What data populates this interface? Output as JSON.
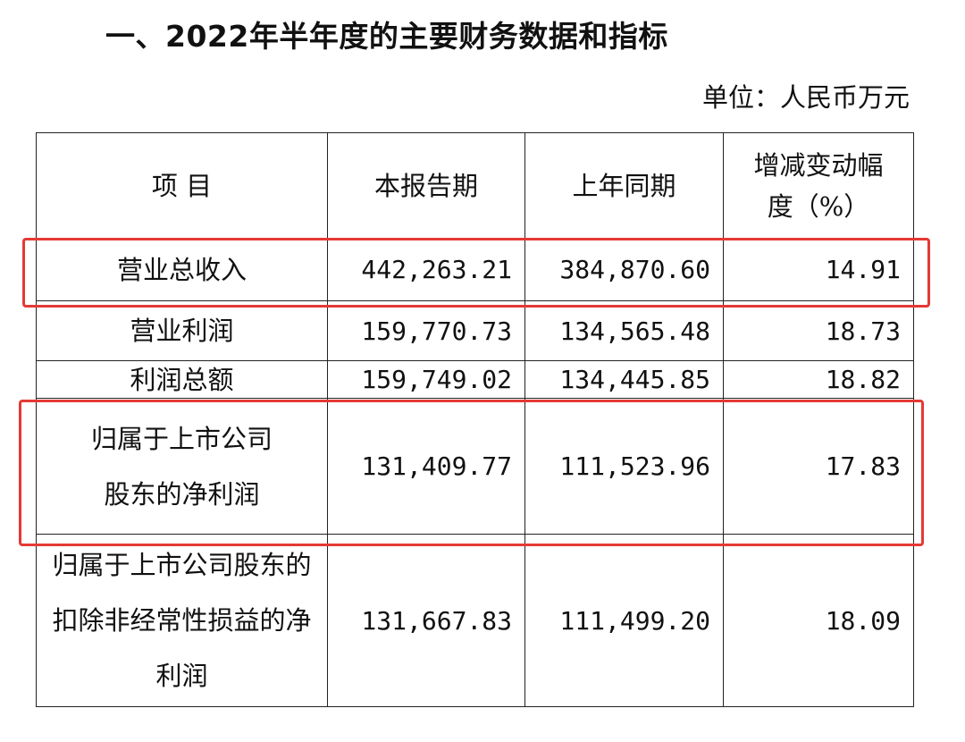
{
  "heading": "一、2022年半年度的主要财务数据和指标",
  "unit": "单位：人民币万元",
  "table": {
    "headers": [
      "项 目",
      "本报告期",
      "上年同期",
      "增减变动幅度（%）"
    ],
    "rows": [
      {
        "item": "营业总收入",
        "current": "442,263.21",
        "prior": "384,870.60",
        "change": "14.91"
      },
      {
        "item": "营业利润",
        "current": "159,770.73",
        "prior": "134,565.48",
        "change": "18.73"
      },
      {
        "item": "利润总额",
        "current": "159,749.02",
        "prior": "134,445.85",
        "change": "18.82"
      },
      {
        "item": "归属于上市公司股东的净利润",
        "current": "131,409.77",
        "prior": "111,523.96",
        "change": "17.83"
      },
      {
        "item": "归属于上市公司股东的扣除非经常性损益的净利润",
        "current": "131,667.83",
        "prior": "111,499.20",
        "change": "18.09"
      }
    ]
  },
  "highlight_color": "#e53935"
}
